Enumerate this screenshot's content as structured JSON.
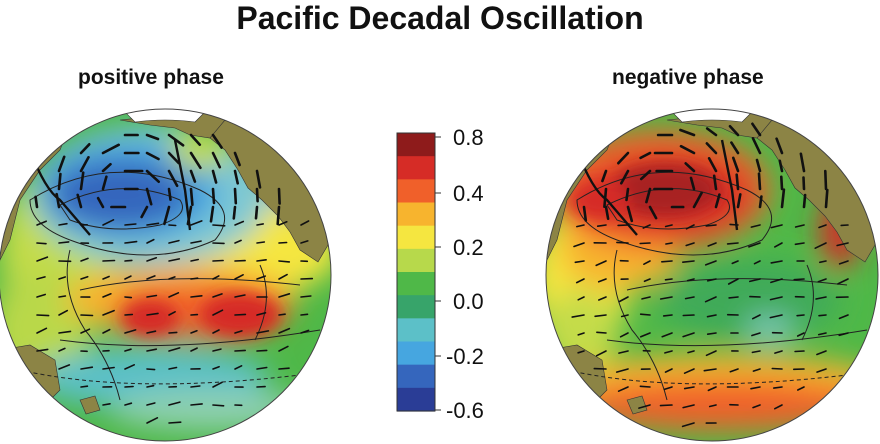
{
  "title": "Pacific Decadal Oscillation",
  "panels": [
    {
      "label": "positive phase"
    },
    {
      "label": "negative phase"
    }
  ],
  "colorbar": {
    "ticks": [
      "0.8",
      "0.4",
      "0.2",
      "0.0",
      "-0.2",
      "-0.6"
    ],
    "colors": [
      "#8e1b1b",
      "#d62c26",
      "#f0602a",
      "#f7b42e",
      "#f5e640",
      "#b7d94b",
      "#4fb848",
      "#37a46a",
      "#5cc0c8",
      "#46a6e0",
      "#3566bd",
      "#2a3d96"
    ]
  },
  "colors": {
    "land": "#8c8445",
    "ice": "#ffffff",
    "vector": "#111111",
    "contour": "#222222"
  }
}
